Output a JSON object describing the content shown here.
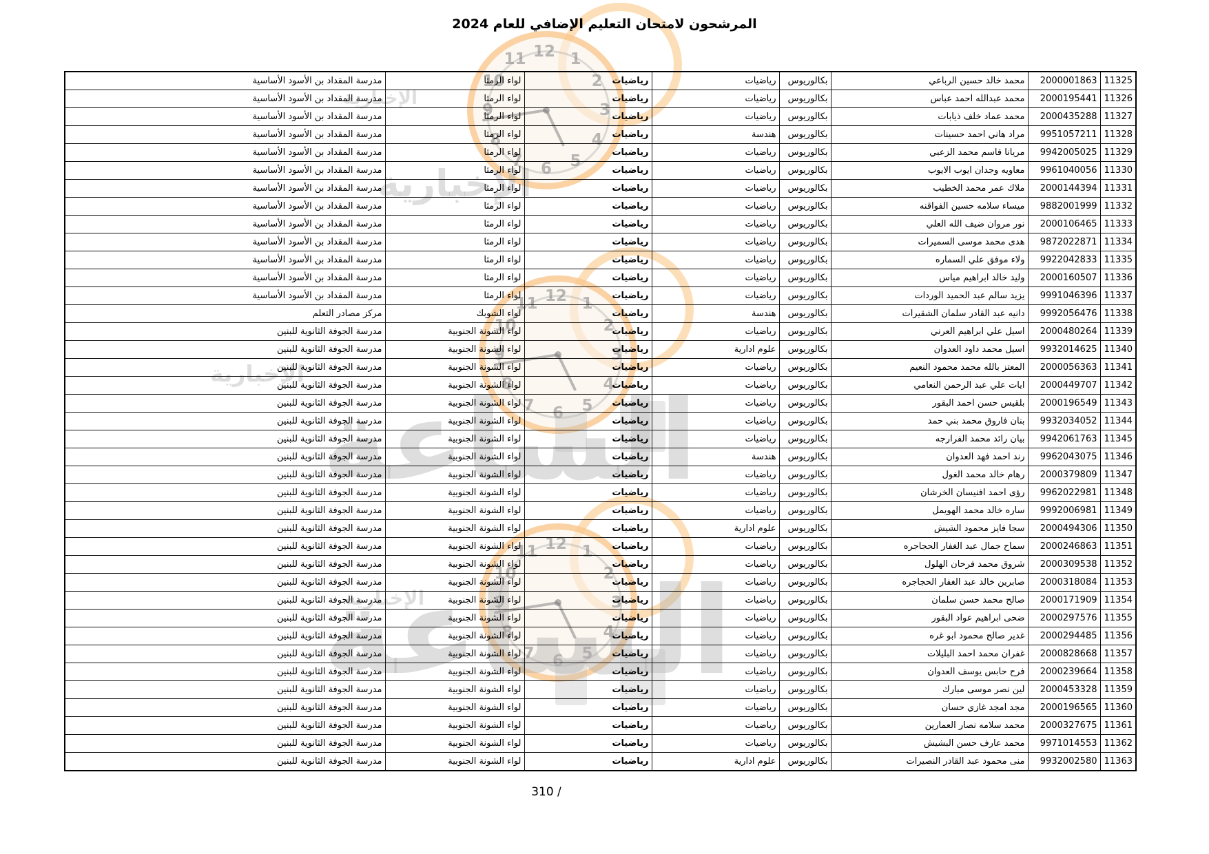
{
  "title": "المرشحون لامتحان التعليم الإضافي للعام 2024",
  "footer": {
    "page_text": "310 /"
  },
  "watermark": {
    "brand_main": "الساعة",
    "brand_secondary": "الإخبارية",
    "accent_orange": "#f7aa50",
    "clock_numerals": [
      "12",
      "1",
      "2",
      "3",
      "4",
      "5",
      "6",
      "7",
      "8",
      "9",
      "10",
      "11"
    ]
  },
  "table": {
    "column_keys": [
      "serial",
      "national_id",
      "name",
      "degree",
      "specialization",
      "subject",
      "directorate",
      "school"
    ],
    "rows": [
      {
        "serial": "11325",
        "national_id": "2000001863",
        "name": "محمد خالد حسين الرباعي",
        "degree": "بكالوريوس",
        "specialization": "رياضيات",
        "subject": "رياضيات",
        "directorate": "لواء الرمثا",
        "school": "مدرسة المقداد بن الأسود الأساسية"
      },
      {
        "serial": "11326",
        "national_id": "2000195441",
        "name": "محمد عبدالله احمد عباس",
        "degree": "بكالوريوس",
        "specialization": "رياضيات",
        "subject": "رياضيات",
        "directorate": "لواء الرمثا",
        "school": "مدرسة المقداد بن الأسود الأساسية"
      },
      {
        "serial": "11327",
        "national_id": "2000435288",
        "name": "محمد عماد خلف ذيابات",
        "degree": "بكالوريوس",
        "specialization": "رياضيات",
        "subject": "رياضيات",
        "directorate": "لواء الرمثا",
        "school": "مدرسة المقداد بن الأسود الأساسية"
      },
      {
        "serial": "11328",
        "national_id": "9951057211",
        "name": "مراد هاني احمد حسينات",
        "degree": "بكالوريوس",
        "specialization": "هندسة",
        "subject": "رياضيات",
        "directorate": "لواء الرمثا",
        "school": "مدرسة المقداد بن الأسود الأساسية"
      },
      {
        "serial": "11329",
        "national_id": "9942005025",
        "name": "مريانا قاسم محمد الزعبي",
        "degree": "بكالوريوس",
        "specialization": "رياضيات",
        "subject": "رياضيات",
        "directorate": "لواء الرمثا",
        "school": "مدرسة المقداد بن الأسود الأساسية"
      },
      {
        "serial": "11330",
        "national_id": "9961040056",
        "name": "معاويه وجدان ايوب الايوب",
        "degree": "بكالوريوس",
        "specialization": "رياضيات",
        "subject": "رياضيات",
        "directorate": "لواء الرمثا",
        "school": "مدرسة المقداد بن الأسود الأساسية"
      },
      {
        "serial": "11331",
        "national_id": "2000144394",
        "name": "ملاك عمر محمد الخطيب",
        "degree": "بكالوريوس",
        "specialization": "رياضيات",
        "subject": "رياضيات",
        "directorate": "لواء الرمثا",
        "school": "مدرسة المقداد بن الأسود الأساسية"
      },
      {
        "serial": "11332",
        "national_id": "9882001999",
        "name": "ميساء سلامه حسين الفواقنه",
        "degree": "بكالوريوس",
        "specialization": "رياضيات",
        "subject": "رياضيات",
        "directorate": "لواء الرمثا",
        "school": "مدرسة المقداد بن الأسود الأساسية"
      },
      {
        "serial": "11333",
        "national_id": "2000106465",
        "name": "نور مروان ضيف الله العلي",
        "degree": "بكالوريوس",
        "specialization": "رياضيات",
        "subject": "رياضيات",
        "directorate": "لواء الرمثا",
        "school": "مدرسة المقداد بن الأسود الأساسية"
      },
      {
        "serial": "11334",
        "national_id": "9872022871",
        "name": "هدى محمد موسى السميرات",
        "degree": "بكالوريوس",
        "specialization": "رياضيات",
        "subject": "رياضيات",
        "directorate": "لواء الرمثا",
        "school": "مدرسة المقداد بن الأسود الأساسية"
      },
      {
        "serial": "11335",
        "national_id": "9922042833",
        "name": "ولاء موفق علي السماره",
        "degree": "بكالوريوس",
        "specialization": "رياضيات",
        "subject": "رياضيات",
        "directorate": "لواء الرمثا",
        "school": "مدرسة المقداد بن الأسود الأساسية"
      },
      {
        "serial": "11336",
        "national_id": "2000160507",
        "name": "وليد خالد ابراهيم مياس",
        "degree": "بكالوريوس",
        "specialization": "رياضيات",
        "subject": "رياضيات",
        "directorate": "لواء الرمثا",
        "school": "مدرسة المقداد بن الأسود الأساسية"
      },
      {
        "serial": "11337",
        "national_id": "9991046396",
        "name": "يزيد سالم عبد الحميد الوردات",
        "degree": "بكالوريوس",
        "specialization": "رياضيات",
        "subject": "رياضيات",
        "directorate": "لواء الرمثا",
        "school": "مدرسة المقداد بن الأسود الأساسية"
      },
      {
        "serial": "11338",
        "national_id": "9992056476",
        "name": "دانيه عبد القادر سلمان الشقيرات",
        "degree": "بكالوريوس",
        "specialization": "هندسة",
        "subject": "رياضيات",
        "directorate": "لواء الشوبك",
        "school": "مركز مصادر التعلم"
      },
      {
        "serial": "11339",
        "national_id": "2000480264",
        "name": "اسيل علي ابراهيم العرني",
        "degree": "بكالوريوس",
        "specialization": "رياضيات",
        "subject": "رياضيات",
        "directorate": "لواء الشونة الجنوبية",
        "school": "مدرسة الجوفة الثانوية للبنين"
      },
      {
        "serial": "11340",
        "national_id": "9932014625",
        "name": "اسيل محمد داود العدوان",
        "degree": "بكالوريوس",
        "specialization": "علوم ادارية",
        "subject": "رياضيات",
        "directorate": "لواء الشونة الجنوبية",
        "school": "مدرسة الجوفة الثانوية للبنين"
      },
      {
        "serial": "11341",
        "national_id": "2000056363",
        "name": "المعتز بالله محمد محمود النعيم",
        "degree": "بكالوريوس",
        "specialization": "رياضيات",
        "subject": "رياضيات",
        "directorate": "لواء الشونة الجنوبية",
        "school": "مدرسة الجوفة الثانوية للبنين"
      },
      {
        "serial": "11342",
        "national_id": "2000449707",
        "name": "ايات علي عبد الرحمن النعامي",
        "degree": "بكالوريوس",
        "specialization": "رياضيات",
        "subject": "رياضيات",
        "directorate": "لواء الشونة الجنوبية",
        "school": "مدرسة الجوفة الثانوية للبنين"
      },
      {
        "serial": "11343",
        "national_id": "2000196549",
        "name": "بلقيس حسن احمد البقور",
        "degree": "بكالوريوس",
        "specialization": "رياضيات",
        "subject": "رياضيات",
        "directorate": "لواء الشونة الجنوبية",
        "school": "مدرسة الجوفة الثانوية للبنين"
      },
      {
        "serial": "11344",
        "national_id": "9932034052",
        "name": "بنان فاروق محمد بني حمد",
        "degree": "بكالوريوس",
        "specialization": "رياضيات",
        "subject": "رياضيات",
        "directorate": "لواء الشونة الجنوبية",
        "school": "مدرسة الجوفة الثانوية للبنين"
      },
      {
        "serial": "11345",
        "national_id": "9942061763",
        "name": "بيان رائد محمد الفرارجه",
        "degree": "بكالوريوس",
        "specialization": "رياضيات",
        "subject": "رياضيات",
        "directorate": "لواء الشونة الجنوبية",
        "school": "مدرسة الجوفة الثانوية للبنين"
      },
      {
        "serial": "11346",
        "national_id": "9962043075",
        "name": "رند احمد فهد العدوان",
        "degree": "بكالوريوس",
        "specialization": "هندسة",
        "subject": "رياضيات",
        "directorate": "لواء الشونة الجنوبية",
        "school": "مدرسة الجوفة الثانوية للبنين"
      },
      {
        "serial": "11347",
        "national_id": "2000379809",
        "name": "رهام خالد محمد الغول",
        "degree": "بكالوريوس",
        "specialization": "رياضيات",
        "subject": "رياضيات",
        "directorate": "لواء الشونة الجنوبية",
        "school": "مدرسة الجوفة الثانوية للبنين"
      },
      {
        "serial": "11348",
        "national_id": "9962022981",
        "name": "رؤى احمد افنيسان الخرشان",
        "degree": "بكالوريوس",
        "specialization": "رياضيات",
        "subject": "رياضيات",
        "directorate": "لواء الشونة الجنوبية",
        "school": "مدرسة الجوفة الثانوية للبنين"
      },
      {
        "serial": "11349",
        "national_id": "9992006981",
        "name": "ساره خالد محمد الهويمل",
        "degree": "بكالوريوس",
        "specialization": "رياضيات",
        "subject": "رياضيات",
        "directorate": "لواء الشونة الجنوبية",
        "school": "مدرسة الجوفة الثانوية للبنين"
      },
      {
        "serial": "11350",
        "national_id": "2000494306",
        "name": "سجا فايز محمود الشيش",
        "degree": "بكالوريوس",
        "specialization": "علوم ادارية",
        "subject": "رياضيات",
        "directorate": "لواء الشونة الجنوبية",
        "school": "مدرسة الجوفة الثانوية للبنين"
      },
      {
        "serial": "11351",
        "national_id": "2000246863",
        "name": "سماح جمال عبد الغفار الحجاجره",
        "degree": "بكالوريوس",
        "specialization": "رياضيات",
        "subject": "رياضيات",
        "directorate": "لواء الشونة الجنوبية",
        "school": "مدرسة الجوفة الثانوية للبنين"
      },
      {
        "serial": "11352",
        "national_id": "2000309538",
        "name": "شروق محمد فرحان الهلول",
        "degree": "بكالوريوس",
        "specialization": "رياضيات",
        "subject": "رياضيات",
        "directorate": "لواء الشونة الجنوبية",
        "school": "مدرسة الجوفة الثانوية للبنين"
      },
      {
        "serial": "11353",
        "national_id": "2000318084",
        "name": "صابرين خالد عبد الغفار الحجاجره",
        "degree": "بكالوريوس",
        "specialization": "رياضيات",
        "subject": "رياضيات",
        "directorate": "لواء الشونة الجنوبية",
        "school": "مدرسة الجوفة الثانوية للبنين"
      },
      {
        "serial": "11354",
        "national_id": "2000171909",
        "name": "صالح محمد حسن سلمان",
        "degree": "بكالوريوس",
        "specialization": "رياضيات",
        "subject": "رياضيات",
        "directorate": "لواء الشونة الجنوبية",
        "school": "مدرسة الجوفة الثانوية للبنين"
      },
      {
        "serial": "11355",
        "national_id": "2000297576",
        "name": "ضحى ابراهيم عواد البقور",
        "degree": "بكالوريوس",
        "specialization": "رياضيات",
        "subject": "رياضيات",
        "directorate": "لواء الشونة الجنوبية",
        "school": "مدرسة الجوفة الثانوية للبنين"
      },
      {
        "serial": "11356",
        "national_id": "2000294485",
        "name": "غدير صالح محمود ابو غره",
        "degree": "بكالوريوس",
        "specialization": "رياضيات",
        "subject": "رياضيات",
        "directorate": "لواء الشونة الجنوبية",
        "school": "مدرسة الجوفة الثانوية للبنين"
      },
      {
        "serial": "11357",
        "national_id": "2000828668",
        "name": "غفران محمد احمد البليلات",
        "degree": "بكالوريوس",
        "specialization": "رياضيات",
        "subject": "رياضيات",
        "directorate": "لواء الشونة الجنوبية",
        "school": "مدرسة الجوفة الثانوية للبنين"
      },
      {
        "serial": "11358",
        "national_id": "2000239664",
        "name": "فرح حابس يوسف العدوان",
        "degree": "بكالوريوس",
        "specialization": "رياضيات",
        "subject": "رياضيات",
        "directorate": "لواء الشونة الجنوبية",
        "school": "مدرسة الجوفة الثانوية للبنين"
      },
      {
        "serial": "11359",
        "national_id": "2000453328",
        "name": "لين نصر موسى مبارك",
        "degree": "بكالوريوس",
        "specialization": "رياضيات",
        "subject": "رياضيات",
        "directorate": "لواء الشونة الجنوبية",
        "school": "مدرسة الجوفة الثانوية للبنين"
      },
      {
        "serial": "11360",
        "national_id": "2000196565",
        "name": "مجد امجد غازي حسان",
        "degree": "بكالوريوس",
        "specialization": "رياضيات",
        "subject": "رياضيات",
        "directorate": "لواء الشونة الجنوبية",
        "school": "مدرسة الجوفة الثانوية للبنين"
      },
      {
        "serial": "11361",
        "national_id": "2000327675",
        "name": "محمد سلامه نصار العمارين",
        "degree": "بكالوريوس",
        "specialization": "رياضيات",
        "subject": "رياضيات",
        "directorate": "لواء الشونة الجنوبية",
        "school": "مدرسة الجوفة الثانوية للبنين"
      },
      {
        "serial": "11362",
        "national_id": "9971014553",
        "name": "محمد عارف حسن البشيش",
        "degree": "بكالوريوس",
        "specialization": "رياضيات",
        "subject": "رياضيات",
        "directorate": "لواء الشونة الجنوبية",
        "school": "مدرسة الجوفة الثانوية للبنين"
      },
      {
        "serial": "11363",
        "national_id": "9932002580",
        "name": "منى محمود عبد القادر النصيرات",
        "degree": "بكالوريوس",
        "specialization": "علوم ادارية",
        "subject": "رياضيات",
        "directorate": "لواء الشونة الجنوبية",
        "school": "مدرسة الجوفة الثانوية للبنين"
      }
    ]
  }
}
